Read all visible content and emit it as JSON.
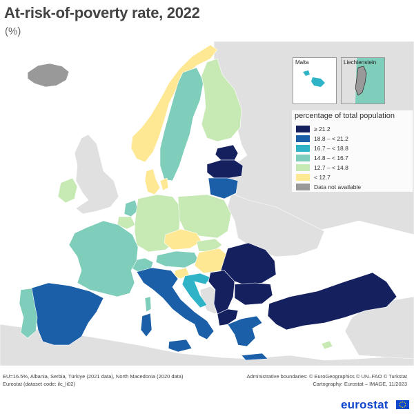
{
  "header": {
    "title": "At-risk-of-poverty rate, 2022",
    "subtitle": "(%)"
  },
  "legend": {
    "title": "percentage of total population",
    "items": [
      {
        "label": "≥ 21.2",
        "color": "#15205f"
      },
      {
        "label": "18.8 – < 21.2",
        "color": "#1b5fa8"
      },
      {
        "label": "16.7 – < 18.8",
        "color": "#2fb3c7"
      },
      {
        "label": "14.8 – < 16.7",
        "color": "#7fcdbb"
      },
      {
        "label": "12.7 – < 14.8",
        "color": "#c7e9b4"
      },
      {
        "label": "< 12.7",
        "color": "#ffe894"
      },
      {
        "label": "Data not available",
        "color": "#999999"
      }
    ]
  },
  "insets": {
    "malta": "Malta",
    "liechtenstein": "Liechtenstein"
  },
  "footnotes": {
    "left_line1": "EU=16.5%, Albania, Serbia, Türkiye (2021 data), North Macedonia (2020 data)",
    "left_line2": "Eurostat (dataset code: ilc_li02)",
    "right_line1": "Administrative boundaries: © EuroGeographics © UN–FAO © Turkstat",
    "right_line2": "Cartography: Eurostat – IMAGE, 11/2023"
  },
  "brand": "eurostat",
  "colors": {
    "sea": "#ffffff",
    "non_eu_land": "#e0e0e0",
    "border": "#9a9a9a"
  },
  "map_regions": [
    {
      "name": "Iceland",
      "class": "Data not available"
    },
    {
      "name": "Norway",
      "class": "< 12.7"
    },
    {
      "name": "Sweden",
      "class": "14.8 – < 16.7"
    },
    {
      "name": "Finland",
      "class": "12.7 – < 14.8"
    },
    {
      "name": "Denmark",
      "class": "< 12.7"
    },
    {
      "name": "Estonia",
      "class": "≥ 21.2"
    },
    {
      "name": "Latvia",
      "class": "≥ 21.2"
    },
    {
      "name": "Lithuania",
      "class": "18.8 – < 21.2"
    },
    {
      "name": "Ireland",
      "class": "12.7 – < 14.8"
    },
    {
      "name": "Netherlands",
      "class": "14.8 – < 16.7"
    },
    {
      "name": "Belgium",
      "class": "12.7 – < 14.8"
    },
    {
      "name": "Germany",
      "class": "12.7 – < 14.8"
    },
    {
      "name": "Poland",
      "class": "12.7 – < 14.8"
    },
    {
      "name": "France",
      "class": "14.8 – < 16.7"
    },
    {
      "name": "Czechia",
      "class": "< 12.7"
    },
    {
      "name": "Slovakia",
      "class": "12.7 – < 14.8"
    },
    {
      "name": "Austria",
      "class": "14.8 – < 16.7"
    },
    {
      "name": "Hungary",
      "class": "< 12.7"
    },
    {
      "name": "Slovenia",
      "class": "< 12.7"
    },
    {
      "name": "Croatia",
      "class": "16.7 – < 18.8"
    },
    {
      "name": "Switzerland",
      "class": "14.8 – < 16.7"
    },
    {
      "name": "Italy",
      "class": "18.8 – < 21.2"
    },
    {
      "name": "Spain",
      "class": "18.8 – < 21.2"
    },
    {
      "name": "Portugal",
      "class": "14.8 – < 16.7"
    },
    {
      "name": "Romania",
      "class": "≥ 21.2"
    },
    {
      "name": "Bulgaria",
      "class": "≥ 21.2"
    },
    {
      "name": "Serbia",
      "class": "≥ 21.2"
    },
    {
      "name": "Greece",
      "class": "18.8 – < 21.2"
    },
    {
      "name": "Türkiye",
      "class": "≥ 21.2"
    },
    {
      "name": "Malta",
      "class": "16.7 – < 18.8"
    },
    {
      "name": "Liechtenstein",
      "class": "Data not available"
    },
    {
      "name": "Cyprus",
      "class": "12.7 – < 14.8"
    }
  ]
}
